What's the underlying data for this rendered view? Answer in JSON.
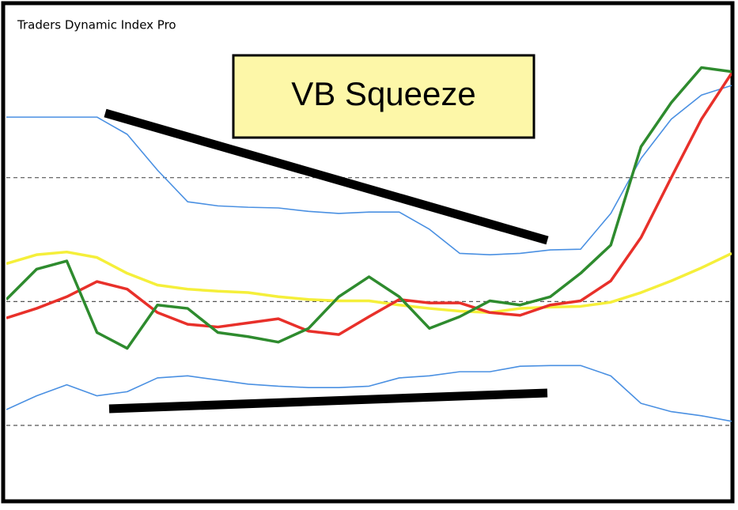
{
  "chart_data": {
    "type": "line",
    "title": "Traders Dynamic Index Pro",
    "annotation": "VB Squeeze",
    "x": [
      0,
      1,
      2,
      3,
      4,
      5,
      6,
      7,
      8,
      9,
      10,
      11,
      12,
      13,
      14,
      15,
      16,
      17,
      18,
      19,
      20,
      21,
      22,
      23,
      24
    ],
    "xlim": [
      0,
      24
    ],
    "ylim": [
      21.2,
      92.9
    ],
    "hlines": [
      68,
      50,
      32
    ],
    "series": [
      {
        "color": "#4a90e2",
        "values": [
          76.8,
          76.8,
          76.8,
          76.8,
          74.3,
          69.1,
          64.5,
          63.9,
          63.7,
          63.6,
          63.1,
          62.8,
          63.0,
          63.0,
          60.5,
          57.0,
          56.8,
          57.0,
          57.5,
          57.6,
          62.8,
          70.8,
          76.5,
          80.0,
          81.4
        ]
      },
      {
        "color": "#4a90e2",
        "values": [
          34.3,
          36.3,
          37.9,
          36.3,
          36.9,
          38.9,
          39.2,
          38.6,
          38.0,
          37.7,
          37.5,
          37.5,
          37.7,
          38.9,
          39.2,
          39.8,
          39.8,
          40.6,
          40.7,
          40.7,
          39.2,
          35.2,
          34.0,
          33.4,
          32.6
        ]
      },
      {
        "color": "#f5ef3a",
        "values": [
          55.5,
          56.8,
          57.2,
          56.4,
          54.1,
          52.4,
          51.8,
          51.5,
          51.3,
          50.7,
          50.3,
          50.1,
          50.1,
          49.5,
          49.0,
          48.6,
          48.4,
          49.0,
          49.2,
          49.3,
          49.9,
          51.3,
          53.0,
          54.9,
          57.0
        ]
      },
      {
        "color": "#e8302a",
        "values": [
          47.6,
          49.0,
          50.7,
          52.9,
          51.8,
          48.4,
          46.7,
          46.3,
          46.9,
          47.5,
          45.7,
          45.2,
          47.8,
          50.3,
          49.8,
          49.8,
          48.4,
          48.0,
          49.5,
          50.1,
          53.0,
          59.3,
          68.0,
          76.5,
          83.2
        ]
      },
      {
        "color": "#2e8b2e",
        "values": [
          50.3,
          54.7,
          55.9,
          45.5,
          43.2,
          49.5,
          49.0,
          45.5,
          44.9,
          44.1,
          46.1,
          50.7,
          53.6,
          50.7,
          46.1,
          47.8,
          50.1,
          49.5,
          50.7,
          54.1,
          58.2,
          72.5,
          78.9,
          84.0,
          83.4
        ]
      }
    ]
  }
}
